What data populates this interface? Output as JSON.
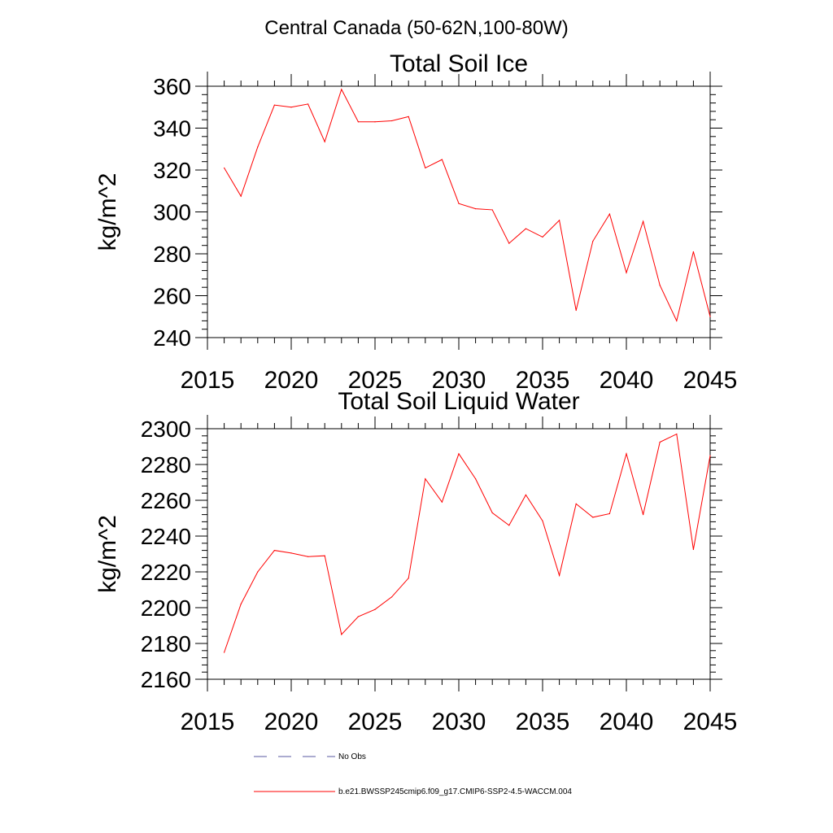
{
  "figure": {
    "title": "Central Canada (50-62N,100-80W)"
  },
  "colors": {
    "series": "#ff0000",
    "no_obs": "#5a5aa0",
    "axis": "#000000"
  },
  "chart_data": [
    {
      "type": "line",
      "title": "Total Soil Ice",
      "xlabel": "",
      "ylabel": "kg/m^2",
      "xlim": [
        2015,
        2045
      ],
      "ylim": [
        240,
        360
      ],
      "xticks": [
        2015,
        2020,
        2025,
        2030,
        2035,
        2040,
        2045
      ],
      "yticks": [
        240,
        260,
        280,
        300,
        320,
        340,
        360
      ],
      "x": [
        2016,
        2017,
        2018,
        2019,
        2020,
        2021,
        2022,
        2023,
        2024,
        2025,
        2026,
        2027,
        2028,
        2029,
        2030,
        2031,
        2032,
        2033,
        2034,
        2035,
        2036,
        2037,
        2038,
        2039,
        2040,
        2041,
        2042,
        2043,
        2044,
        2045
      ],
      "series": [
        {
          "name": "b.e21.BWSSP245cmip6.f09_g17.CMIP6-SSP2-4.5-WACCM.004",
          "values": [
            321,
            307.5,
            331,
            351,
            350,
            351.5,
            333.5,
            358.5,
            343,
            343,
            343.5,
            345.5,
            321,
            325,
            304,
            301.5,
            301,
            285,
            292,
            288,
            296,
            253,
            286,
            299,
            271,
            295.5,
            265,
            248,
            281,
            250
          ]
        }
      ]
    },
    {
      "type": "line",
      "title": "Total Soil Liquid Water",
      "xlabel": "",
      "ylabel": "kg/m^2",
      "xlim": [
        2015,
        2045
      ],
      "ylim": [
        2160,
        2300
      ],
      "xticks": [
        2015,
        2020,
        2025,
        2030,
        2035,
        2040,
        2045
      ],
      "yticks": [
        2160,
        2180,
        2200,
        2220,
        2240,
        2260,
        2280,
        2300
      ],
      "x": [
        2016,
        2017,
        2018,
        2019,
        2020,
        2021,
        2022,
        2023,
        2024,
        2025,
        2026,
        2027,
        2028,
        2029,
        2030,
        2031,
        2032,
        2033,
        2034,
        2035,
        2036,
        2037,
        2038,
        2039,
        2040,
        2041,
        2042,
        2043,
        2044,
        2045
      ],
      "series": [
        {
          "name": "b.e21.BWSSP245cmip6.f09_g17.CMIP6-SSP2-4.5-WACCM.004",
          "values": [
            2175,
            2202,
            2220,
            2232,
            2230.5,
            2228.5,
            2229,
            2185,
            2195,
            2199,
            2206,
            2216.5,
            2272,
            2259,
            2286,
            2272,
            2253,
            2246,
            2263,
            2248.5,
            2218,
            2258,
            2250.5,
            2252.5,
            2286,
            2252,
            2292.5,
            2297,
            2232.5,
            2285
          ]
        }
      ]
    }
  ],
  "legend": {
    "items": [
      {
        "label": "No Obs",
        "style": "dashed"
      },
      {
        "label": "b.e21.BWSSP245cmip6.f09_g17.CMIP6-SSP2-4.5-WACCM.004",
        "style": "solid"
      }
    ]
  }
}
